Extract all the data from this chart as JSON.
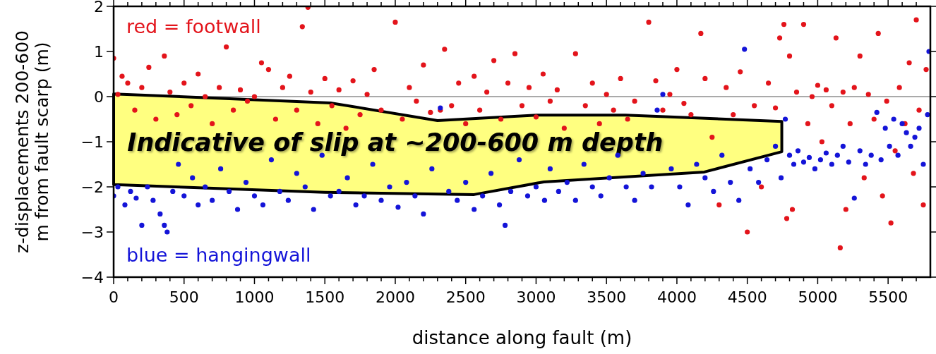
{
  "chart_data": {
    "type": "scatter",
    "xlabel": "distance along fault (m)",
    "ylabel": "z-displacements 200-600 m from fault scarp (m)",
    "annotations": [
      "Indicative of slip at ~200-600 m depth",
      "red = footwall",
      "blue = hangingwall"
    ],
    "xlim": [
      0,
      5800
    ],
    "xticks": [
      0,
      {
        "value": 100,
        "label": null
      },
      {
        "value": 200,
        "label": null
      },
      {
        "value": 300,
        "label": null
      },
      {
        "value": 400,
        "label": null
      },
      500,
      {
        "value": 600,
        "label": null
      },
      {
        "value": 700,
        "label": null
      },
      {
        "value": 800,
        "label": null
      },
      {
        "value": 900,
        "label": null
      },
      1000,
      {
        "value": 1100,
        "label": null
      },
      {
        "value": 1200,
        "label": null
      },
      {
        "value": 1300,
        "label": null
      },
      {
        "value": 1400,
        "label": null
      },
      1500,
      {
        "value": 1600,
        "label": null
      },
      {
        "value": 1700,
        "label": null
      },
      {
        "value": 1800,
        "label": null
      },
      {
        "value": 1900,
        "label": null
      },
      2000,
      {
        "value": 2100,
        "label": null
      },
      {
        "value": 2200,
        "label": null
      },
      {
        "value": 2300,
        "label": null
      },
      {
        "value": 2400,
        "label": null
      },
      2500,
      {
        "value": 2600,
        "label": null
      },
      {
        "value": 2700,
        "label": null
      },
      {
        "value": 2800,
        "label": null
      },
      {
        "value": 2900,
        "label": null
      },
      3000,
      {
        "value": 3100,
        "label": null
      },
      {
        "value": 3200,
        "label": null
      },
      {
        "value": 3300,
        "label": null
      },
      {
        "value": 3400,
        "label": null
      },
      3500,
      {
        "value": 3600,
        "label": null
      },
      {
        "value": 3700,
        "label": null
      },
      {
        "value": 3800,
        "label": null
      },
      {
        "value": 3900,
        "label": null
      },
      4000,
      {
        "value": 4100,
        "label": null
      },
      {
        "value": 4200,
        "label": null
      },
      {
        "value": 4300,
        "label": null
      },
      {
        "value": 4400,
        "label": null
      },
      4500,
      {
        "value": 4600,
        "label": null
      },
      {
        "value": 4700,
        "label": null
      },
      {
        "value": 4800,
        "label": null
      },
      {
        "value": 4900,
        "label": null
      },
      5000,
      {
        "value": 5100,
        "label": null
      },
      {
        "value": 5200,
        "label": null
      },
      {
        "value": 5300,
        "label": null
      },
      {
        "value": 5400,
        "label": null
      },
      5500,
      {
        "value": 5600,
        "label": null
      },
      {
        "value": 5700,
        "label": null
      }
    ],
    "ylim": [
      -4,
      2
    ],
    "yticks": [
      {
        "value": -4,
        "label": "−4"
      },
      {
        "value": -3,
        "label": "−3"
      },
      {
        "value": -2,
        "label": "−2"
      },
      {
        "value": -1,
        "label": "−1"
      },
      0,
      1,
      2
    ],
    "ref_lines": [
      {
        "axis": "y",
        "value": 0,
        "color": "#555555"
      }
    ],
    "marker": "circle",
    "series": [
      {
        "color": "#e3141b",
        "x": [
          0,
          30,
          60,
          100,
          150,
          200,
          250,
          300,
          360,
          400,
          450,
          500,
          550,
          600,
          650,
          700,
          750,
          800,
          850,
          900,
          950,
          1000,
          1050,
          1100,
          1150,
          1200,
          1250,
          1300,
          1340,
          1380,
          1400,
          1450,
          1500,
          1550,
          1600,
          1650,
          1700,
          1750,
          1800,
          1850,
          1900,
          2000,
          2050,
          2100,
          2150,
          2200,
          2250,
          2320,
          2350,
          2400,
          2450,
          2500,
          2560,
          2600,
          2650,
          2700,
          2750,
          2800,
          2850,
          2900,
          2950,
          3000,
          3050,
          3100,
          3150,
          3200,
          3280,
          3350,
          3400,
          3450,
          3500,
          3550,
          3600,
          3650,
          3700,
          3800,
          3850,
          3900,
          3950,
          4000,
          4050,
          4100,
          4170,
          4200,
          4250,
          4300,
          4350,
          4400,
          4450,
          4500,
          4550,
          4600,
          4650,
          4700,
          4730,
          4760,
          4780,
          4800,
          4820,
          4850,
          4900,
          4930,
          4960,
          5000,
          5030,
          5060,
          5100,
          5130,
          5160,
          5180,
          5200,
          5230,
          5260,
          5300,
          5330,
          5360,
          5400,
          5430,
          5460,
          5490,
          5520,
          5550,
          5580,
          5620,
          5650,
          5680,
          5700,
          5720,
          5750,
          5770
        ],
        "values": [
          0.85,
          0.05,
          0.45,
          0.3,
          -0.3,
          0.2,
          0.65,
          -0.5,
          0.9,
          0.1,
          -0.4,
          0.3,
          -0.2,
          0.5,
          0,
          -0.6,
          0.2,
          1.1,
          -0.3,
          0.15,
          -0.1,
          0,
          0.75,
          0.6,
          -0.5,
          0.2,
          0.45,
          -0.3,
          1.55,
          1.98,
          0.1,
          -0.6,
          0.4,
          -0.2,
          0.15,
          -0.7,
          0.35,
          -0.4,
          0.05,
          0.6,
          -0.3,
          1.65,
          -0.5,
          0.2,
          -0.1,
          0.7,
          -0.35,
          -0.3,
          1.05,
          -0.2,
          0.3,
          -0.6,
          0.45,
          -0.3,
          0.1,
          0.8,
          -0.5,
          0.3,
          0.95,
          -0.2,
          0.2,
          -0.45,
          0.5,
          -0.1,
          0.15,
          -0.7,
          0.95,
          -0.2,
          0.3,
          -0.6,
          0.05,
          -0.3,
          0.4,
          -0.5,
          -0.1,
          1.65,
          0.35,
          -0.3,
          0.05,
          0.6,
          -0.15,
          -0.4,
          1.4,
          0.4,
          -0.9,
          -2.4,
          0.2,
          -0.4,
          0.55,
          -3,
          -0.2,
          -2,
          0.3,
          -0.25,
          1.3,
          1.6,
          -2.7,
          0.9,
          -2.5,
          0.1,
          1.6,
          -0.6,
          0,
          0.25,
          -1,
          0.15,
          -0.2,
          1.3,
          -3.35,
          0.1,
          -2.5,
          -0.6,
          0.2,
          0.9,
          -1.8,
          0.05,
          -0.5,
          1.4,
          -2.2,
          -0.1,
          -2.8,
          -1.2,
          0.2,
          -0.6,
          0.75,
          -1.7,
          1.7,
          -0.3,
          -2.4,
          0.6
        ]
      },
      {
        "color": "#1414d8",
        "x": [
          0,
          30,
          80,
          120,
          160,
          200,
          240,
          280,
          330,
          360,
          380,
          420,
          460,
          500,
          560,
          600,
          650,
          700,
          760,
          820,
          880,
          940,
          1000,
          1060,
          1120,
          1180,
          1240,
          1300,
          1360,
          1420,
          1480,
          1540,
          1600,
          1660,
          1720,
          1780,
          1840,
          1900,
          1960,
          2020,
          2080,
          2140,
          2200,
          2260,
          2320,
          2380,
          2440,
          2500,
          2560,
          2620,
          2680,
          2740,
          2780,
          2820,
          2880,
          2940,
          3000,
          3060,
          3100,
          3160,
          3220,
          3280,
          3340,
          3400,
          3460,
          3520,
          3580,
          3640,
          3700,
          3760,
          3820,
          3860,
          3900,
          3960,
          4020,
          4080,
          4140,
          4200,
          4260,
          4320,
          4380,
          4440,
          4480,
          4520,
          4580,
          4640,
          4700,
          4740,
          4770,
          4800,
          4830,
          4860,
          4900,
          4940,
          4980,
          5020,
          5060,
          5100,
          5140,
          5180,
          5220,
          5260,
          5300,
          5340,
          5380,
          5420,
          5450,
          5480,
          5510,
          5540,
          5570,
          5600,
          5630,
          5660,
          5690,
          5720,
          5750,
          5780,
          5790
        ],
        "values": [
          -2.2,
          -2,
          -2.4,
          -2.1,
          -2.25,
          -2.85,
          -2,
          -2.3,
          -2.6,
          -2.85,
          -3,
          -2.1,
          -1.5,
          -2.2,
          -1.8,
          -2.4,
          -2,
          -2.3,
          -1.6,
          -2.1,
          -2.5,
          -1.9,
          -2.2,
          -2.4,
          -1.4,
          -2.1,
          -2.3,
          -1.7,
          -2,
          -2.5,
          -1.3,
          -2.2,
          -2.1,
          -1.8,
          -2.4,
          -2.2,
          -1.5,
          -2.3,
          -2,
          -2.45,
          -1.9,
          -2.2,
          -2.6,
          -1.6,
          -0.25,
          -2.1,
          -2.3,
          -1.9,
          -2.5,
          -2.2,
          -1.7,
          -2.4,
          -2.85,
          -2.1,
          -1.4,
          -2.2,
          -2,
          -2.3,
          -1.6,
          -2.1,
          -1.9,
          -2.3,
          -1.5,
          -2,
          -2.2,
          -1.8,
          -1.3,
          -2,
          -2.3,
          -1.7,
          -2,
          -0.3,
          0.05,
          -1.6,
          -2,
          -2.4,
          -1.5,
          -1.8,
          -2.1,
          -1.3,
          -1.9,
          -2.3,
          1.05,
          -1.6,
          -1.9,
          -1.4,
          -1.1,
          -1.8,
          -0.5,
          -1.3,
          -1.5,
          -1.2,
          -1.45,
          -1.35,
          -1.6,
          -1.4,
          -1.25,
          -1.5,
          -1.3,
          -1.1,
          -1.45,
          -2.25,
          -1.2,
          -1.5,
          -1.3,
          -0.35,
          -1.4,
          -0.7,
          -1.1,
          -0.5,
          -1.3,
          -0.6,
          -0.8,
          -1.1,
          -0.9,
          -0.7,
          -1.5,
          -0.4,
          1
        ]
      }
    ]
  }
}
